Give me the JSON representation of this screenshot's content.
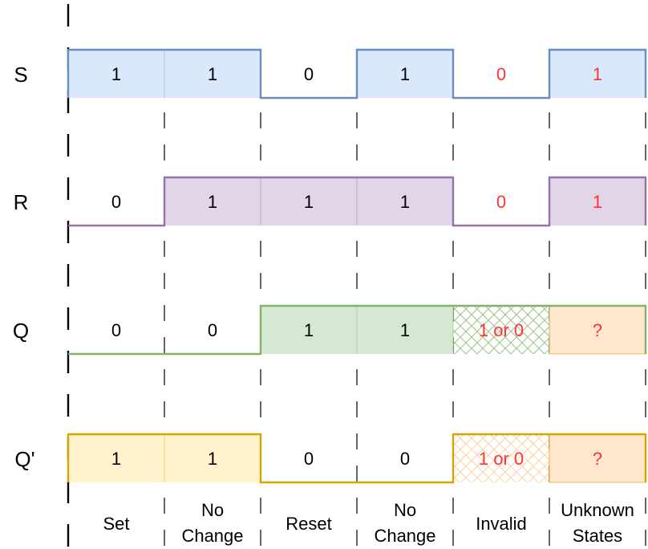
{
  "signals": [
    {
      "name": "S",
      "line_color": "#6c8ebf",
      "fill_color": "#dae8fc",
      "cells": [
        {
          "value": "1",
          "level": "high",
          "style": "fill",
          "text_color": "#000000"
        },
        {
          "value": "1",
          "level": "high",
          "style": "fill",
          "text_color": "#000000"
        },
        {
          "value": "0",
          "level": "low",
          "style": "none",
          "text_color": "#000000"
        },
        {
          "value": "1",
          "level": "high",
          "style": "fill",
          "text_color": "#000000"
        },
        {
          "value": "0",
          "level": "low",
          "style": "none",
          "text_color": "#ff3333"
        },
        {
          "value": "1",
          "level": "high",
          "style": "fill",
          "text_color": "#ff3333"
        }
      ]
    },
    {
      "name": "R",
      "line_color": "#9673a6",
      "fill_color": "#e1d5e7",
      "cells": [
        {
          "value": "0",
          "level": "low",
          "style": "none",
          "text_color": "#000000"
        },
        {
          "value": "1",
          "level": "high",
          "style": "fill",
          "text_color": "#000000"
        },
        {
          "value": "1",
          "level": "high",
          "style": "fill",
          "text_color": "#000000"
        },
        {
          "value": "1",
          "level": "high",
          "style": "fill",
          "text_color": "#000000"
        },
        {
          "value": "0",
          "level": "low",
          "style": "none",
          "text_color": "#ff3333"
        },
        {
          "value": "1",
          "level": "high",
          "style": "fill",
          "text_color": "#ff3333"
        }
      ]
    },
    {
      "name": "Q",
      "line_color": "#82b366",
      "fill_color": "#d5e8d4",
      "cells": [
        {
          "value": "0",
          "level": "low",
          "style": "none",
          "text_color": "#000000"
        },
        {
          "value": "0",
          "level": "low",
          "style": "none",
          "text_color": "#000000"
        },
        {
          "value": "1",
          "level": "high",
          "style": "fill",
          "text_color": "#000000"
        },
        {
          "value": "1",
          "level": "high",
          "style": "fill",
          "text_color": "#000000"
        },
        {
          "value": "1 or 0",
          "level": "high",
          "style": "hatch",
          "hatch_color": "#82b366",
          "text_color": "#ff3333"
        },
        {
          "value": "?",
          "level": "high",
          "style": "unknown",
          "text_color": "#ff3333"
        }
      ]
    },
    {
      "name": "Q'",
      "line_color": "#d6a600",
      "fill_color": "#fff2cc",
      "cells": [
        {
          "value": "1",
          "level": "high",
          "style": "fill",
          "text_color": "#000000"
        },
        {
          "value": "1",
          "level": "high",
          "style": "fill",
          "text_color": "#000000"
        },
        {
          "value": "0",
          "level": "low",
          "style": "none",
          "text_color": "#000000"
        },
        {
          "value": "0",
          "level": "low",
          "style": "none",
          "text_color": "#000000"
        },
        {
          "value": "1 or 0",
          "level": "high",
          "style": "hatch",
          "hatch_color": "#ffcc99",
          "text_color": "#ff3333"
        },
        {
          "value": "?",
          "level": "high",
          "style": "unknown",
          "text_color": "#ff3333"
        }
      ]
    }
  ],
  "unknown_fill": "#ffe6cc",
  "unknown_stroke": "#d79b00",
  "phases": [
    [
      "Set"
    ],
    [
      "No",
      "Change"
    ],
    [
      "Reset"
    ],
    [
      "No",
      "Change"
    ],
    [
      "Invalid"
    ],
    [
      "Unknown",
      "States"
    ]
  ]
}
